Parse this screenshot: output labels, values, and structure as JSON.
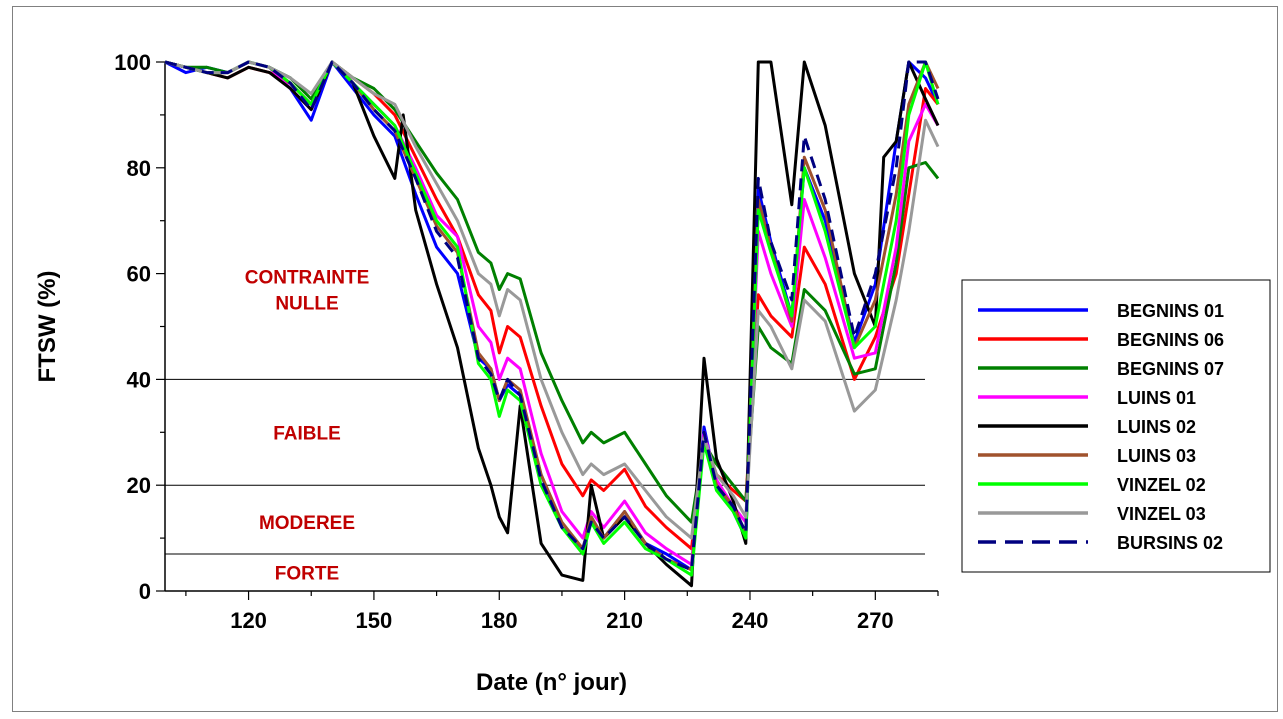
{
  "chart_data": {
    "type": "line",
    "title": "",
    "xlabel": "Date (n° jour)",
    "ylabel": "FTSW (%)",
    "xlim": [
      100,
      285
    ],
    "ylim": [
      0,
      100
    ],
    "x_ticks": [
      120,
      150,
      180,
      210,
      240,
      270
    ],
    "y_ticks": [
      0,
      20,
      40,
      60,
      80,
      100
    ],
    "grid": false,
    "legend_position": "right",
    "thresholds": [
      40,
      20,
      7
    ],
    "zones": [
      {
        "label_lines": [
          "CONTRAINTE",
          "NULLE"
        ],
        "y": 57
      },
      {
        "label_lines": [
          "FAIBLE"
        ],
        "y": 30
      },
      {
        "label_lines": [
          "MODEREE"
        ],
        "y": 13
      },
      {
        "label_lines": [
          "FORTE"
        ],
        "y": 3.5
      }
    ],
    "series": [
      {
        "name": "BEGNINS 01",
        "color": "#0000ff",
        "dashed": false,
        "x": [
          100,
          105,
          110,
          115,
          120,
          125,
          130,
          135,
          140,
          145,
          150,
          155,
          160,
          165,
          170,
          175,
          178,
          180,
          182,
          185,
          190,
          195,
          200,
          202,
          205,
          210,
          215,
          220,
          226,
          229,
          232,
          236,
          239,
          242,
          245,
          250,
          253,
          258,
          265,
          270,
          275,
          278,
          282,
          285
        ],
        "y": [
          100,
          98,
          99,
          98,
          100,
          99,
          95,
          89,
          100,
          95,
          90,
          86,
          75,
          65,
          60,
          44,
          42,
          36,
          39,
          37,
          22,
          12,
          8,
          14,
          10,
          15,
          9,
          7,
          4,
          31,
          20,
          15,
          10,
          76,
          66,
          52,
          80,
          70,
          47,
          58,
          85,
          100,
          97,
          92
        ]
      },
      {
        "name": "BEGNINS 06",
        "color": "#ff0000",
        "dashed": false,
        "x": [
          100,
          105,
          110,
          115,
          120,
          125,
          130,
          135,
          140,
          145,
          150,
          155,
          160,
          165,
          170,
          175,
          178,
          180,
          182,
          185,
          190,
          195,
          200,
          202,
          205,
          210,
          215,
          220,
          226,
          229,
          232,
          236,
          239,
          242,
          245,
          250,
          253,
          258,
          265,
          270,
          275,
          278,
          282,
          285
        ],
        "y": [
          100,
          99,
          98,
          97,
          99,
          98,
          96,
          92,
          100,
          97,
          94,
          90,
          82,
          74,
          67,
          56,
          53,
          45,
          50,
          48,
          35,
          24,
          18,
          21,
          19,
          23,
          16,
          12,
          8,
          29,
          22,
          19,
          17,
          56,
          52,
          48,
          65,
          58,
          40,
          48,
          60,
          75,
          95,
          92
        ]
      },
      {
        "name": "BEGNINS 07",
        "color": "#008000",
        "dashed": false,
        "x": [
          100,
          105,
          110,
          115,
          120,
          125,
          130,
          135,
          140,
          145,
          150,
          155,
          160,
          165,
          170,
          175,
          178,
          180,
          182,
          185,
          190,
          195,
          200,
          202,
          205,
          210,
          215,
          220,
          226,
          229,
          232,
          236,
          239,
          242,
          245,
          250,
          253,
          258,
          265,
          270,
          275,
          278,
          282,
          285
        ],
        "y": [
          100,
          99,
          99,
          98,
          100,
          99,
          97,
          93,
          100,
          97,
          95,
          91,
          85,
          79,
          74,
          64,
          62,
          57,
          60,
          59,
          45,
          36,
          28,
          30,
          28,
          30,
          24,
          18,
          13,
          28,
          24,
          20,
          17,
          50,
          46,
          43,
          57,
          53,
          41,
          42,
          62,
          80,
          81,
          78
        ]
      },
      {
        "name": "LUINS 01",
        "color": "#ff00ff",
        "dashed": false,
        "x": [
          100,
          105,
          110,
          115,
          120,
          125,
          130,
          135,
          140,
          145,
          150,
          155,
          160,
          165,
          170,
          175,
          178,
          180,
          182,
          185,
          190,
          195,
          200,
          202,
          205,
          210,
          215,
          220,
          226,
          229,
          232,
          236,
          239,
          242,
          245,
          250,
          253,
          258,
          265,
          270,
          275,
          278,
          282,
          285
        ],
        "y": [
          100,
          99,
          98,
          98,
          100,
          99,
          95,
          91,
          100,
          96,
          92,
          88,
          80,
          71,
          67,
          50,
          47,
          40,
          44,
          42,
          26,
          15,
          10,
          15,
          12,
          17,
          11,
          8,
          5,
          30,
          21,
          16,
          13,
          68,
          60,
          50,
          74,
          63,
          44,
          45,
          65,
          85,
          92,
          88
        ]
      },
      {
        "name": "LUINS 02",
        "color": "#000000",
        "dashed": false,
        "x": [
          100,
          105,
          110,
          115,
          120,
          125,
          130,
          135,
          140,
          145,
          150,
          155,
          157,
          160,
          165,
          170,
          175,
          178,
          180,
          182,
          185,
          190,
          195,
          200,
          202,
          205,
          210,
          215,
          220,
          226,
          229,
          232,
          236,
          239,
          242,
          245,
          250,
          253,
          258,
          262,
          265,
          270,
          272,
          275,
          278,
          282,
          285
        ],
        "y": [
          100,
          99,
          98,
          97,
          99,
          98,
          95,
          91,
          100,
          96,
          86,
          78,
          90,
          72,
          58,
          46,
          27,
          20,
          14,
          11,
          35,
          9,
          3,
          2,
          20,
          10,
          14,
          9,
          5,
          1,
          44,
          25,
          17,
          9,
          100,
          100,
          73,
          100,
          88,
          72,
          60,
          50,
          82,
          85,
          100,
          93,
          88
        ]
      },
      {
        "name": "LUINS 03",
        "color": "#a0522d",
        "dashed": false,
        "x": [
          100,
          105,
          110,
          115,
          120,
          125,
          130,
          135,
          140,
          145,
          150,
          155,
          160,
          165,
          170,
          175,
          178,
          180,
          182,
          185,
          190,
          195,
          200,
          202,
          205,
          210,
          215,
          220,
          226,
          229,
          232,
          236,
          239,
          242,
          245,
          250,
          253,
          258,
          265,
          270,
          275,
          278,
          282,
          285
        ],
        "y": [
          100,
          99,
          98,
          98,
          100,
          99,
          96,
          92,
          100,
          96,
          91,
          87,
          78,
          69,
          64,
          45,
          42,
          36,
          40,
          38,
          22,
          13,
          8,
          14,
          10,
          15,
          9,
          6,
          4,
          29,
          20,
          16,
          11,
          74,
          65,
          51,
          82,
          72,
          46,
          55,
          75,
          92,
          100,
          95
        ]
      },
      {
        "name": "VINZEL 02",
        "color": "#00ff00",
        "dashed": false,
        "x": [
          100,
          105,
          110,
          115,
          120,
          125,
          130,
          135,
          140,
          145,
          150,
          155,
          160,
          165,
          170,
          175,
          178,
          180,
          182,
          185,
          190,
          195,
          200,
          202,
          205,
          210,
          215,
          220,
          226,
          229,
          232,
          236,
          239,
          242,
          245,
          250,
          253,
          258,
          265,
          270,
          275,
          278,
          282,
          285
        ],
        "y": [
          100,
          99,
          98,
          98,
          100,
          99,
          96,
          92,
          100,
          96,
          92,
          88,
          79,
          70,
          65,
          43,
          40,
          33,
          38,
          36,
          20,
          12,
          7,
          13,
          9,
          13,
          8,
          6,
          3,
          28,
          19,
          15,
          10,
          72,
          64,
          52,
          80,
          68,
          46,
          50,
          70,
          90,
          100,
          92
        ]
      },
      {
        "name": "VINZEL 03",
        "color": "#999999",
        "dashed": false,
        "x": [
          100,
          105,
          110,
          115,
          120,
          125,
          130,
          135,
          140,
          145,
          150,
          155,
          160,
          165,
          170,
          175,
          178,
          180,
          182,
          185,
          190,
          195,
          200,
          202,
          205,
          210,
          215,
          220,
          226,
          229,
          232,
          236,
          239,
          242,
          245,
          250,
          253,
          258,
          265,
          270,
          275,
          278,
          282,
          285
        ],
        "y": [
          100,
          99,
          98,
          98,
          100,
          99,
          97,
          94,
          100,
          97,
          94,
          92,
          84,
          77,
          70,
          60,
          58,
          52,
          57,
          55,
          40,
          30,
          22,
          24,
          22,
          24,
          19,
          14,
          10,
          29,
          22,
          18,
          14,
          53,
          50,
          42,
          55,
          51,
          34,
          38,
          55,
          68,
          89,
          84
        ]
      },
      {
        "name": "BURSINS 02",
        "color": "#000080",
        "dashed": true,
        "x": [
          100,
          105,
          110,
          115,
          120,
          125,
          130,
          135,
          140,
          145,
          150,
          155,
          160,
          165,
          170,
          175,
          178,
          180,
          182,
          185,
          190,
          195,
          200,
          202,
          205,
          210,
          215,
          220,
          226,
          229,
          232,
          236,
          239,
          242,
          245,
          250,
          253,
          258,
          265,
          270,
          275,
          278,
          282,
          285
        ],
        "y": [
          100,
          99,
          98,
          98,
          100,
          99,
          96,
          91,
          100,
          96,
          91,
          87,
          78,
          68,
          63,
          44,
          41,
          36,
          40,
          37,
          21,
          12,
          8,
          13,
          10,
          14,
          9,
          6,
          4,
          30,
          20,
          16,
          11,
          78,
          66,
          55,
          86,
          74,
          48,
          60,
          80,
          100,
          100,
          93
        ]
      }
    ]
  }
}
